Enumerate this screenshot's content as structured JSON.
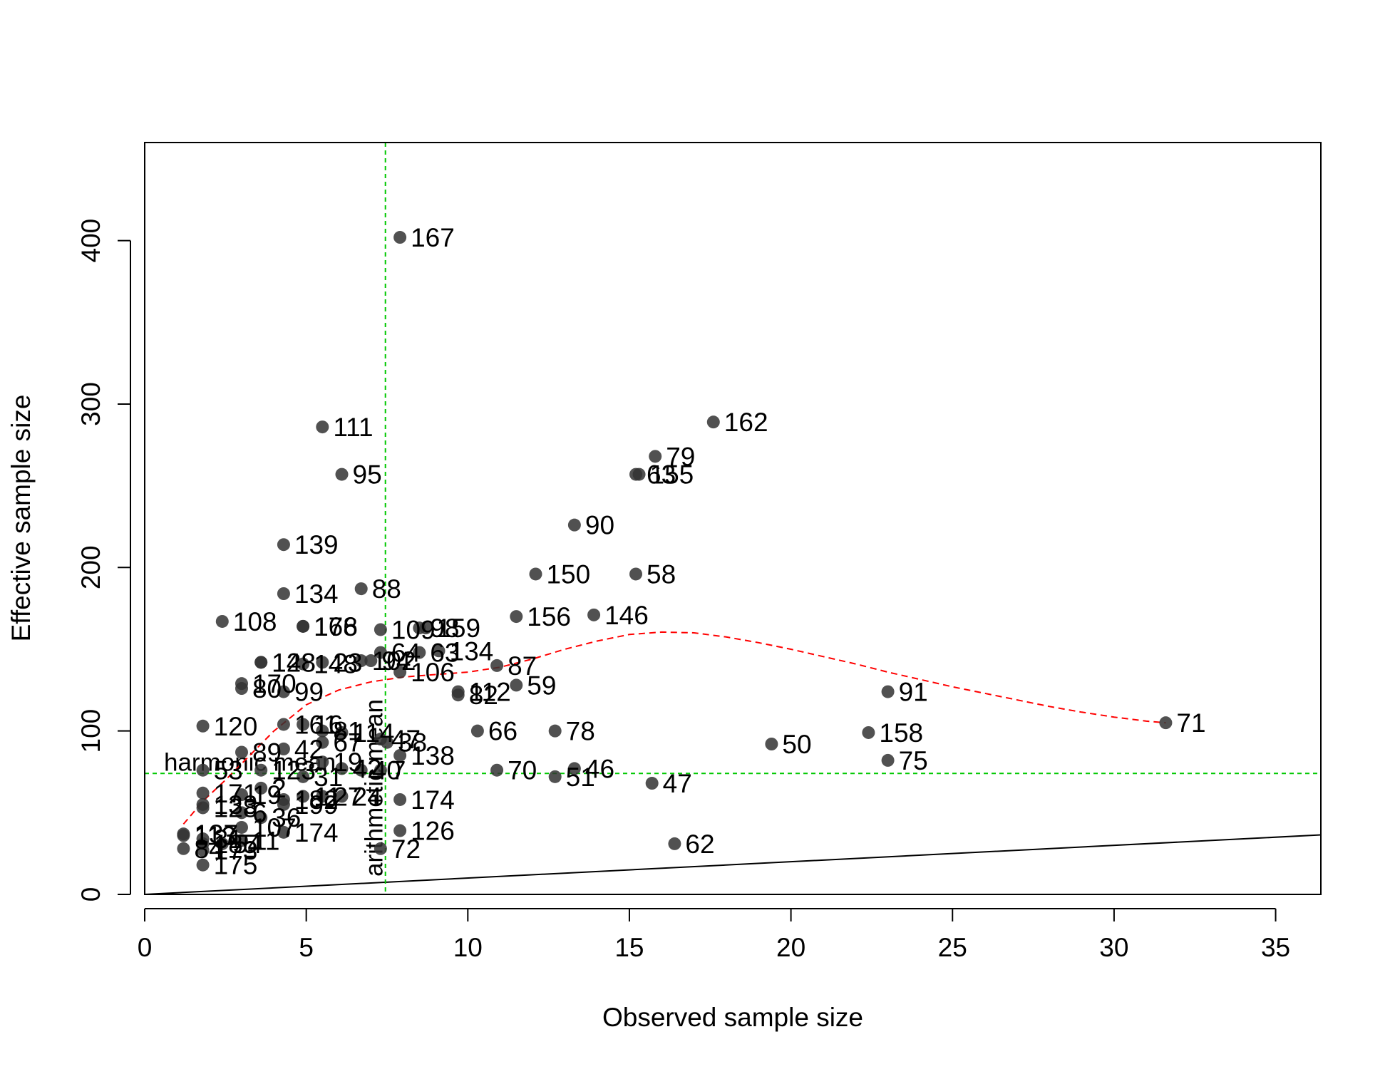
{
  "chart_data": {
    "type": "scatter",
    "title": "",
    "xlabel": "Observed sample size",
    "ylabel": "Effective sample size",
    "xlim": [
      0,
      36.4
    ],
    "ylim": [
      0,
      460
    ],
    "xticks": [
      0,
      5,
      10,
      15,
      20,
      25,
      30,
      35
    ],
    "yticks": [
      0,
      100,
      200,
      300,
      400
    ],
    "grid": false,
    "legend": "none",
    "colors": {
      "points": "#333333",
      "smoother": "#ff0000",
      "reference": "#00c800",
      "identity": "#000000"
    },
    "reference_lines": {
      "harmonic_mean": {
        "label": "harmonic mean",
        "y": 74
      },
      "arithmetic_mean": {
        "label": "arithmetic mean",
        "x": 7.45
      }
    },
    "identity_line": {
      "x": [
        0,
        36.4
      ],
      "y": [
        0,
        36.4
      ]
    },
    "smoother": {
      "x": [
        1.2,
        1.8,
        2.5,
        3.2,
        4,
        5,
        6,
        7,
        8,
        9,
        10,
        11,
        12,
        13,
        14,
        15,
        16,
        17,
        18,
        19,
        20,
        21,
        22,
        23,
        24,
        25,
        26,
        27,
        28,
        29,
        30,
        31,
        31.6
      ],
      "y": [
        43,
        57,
        70,
        84,
        100,
        116,
        125,
        130,
        133,
        134.5,
        136,
        139,
        144,
        150,
        155,
        159,
        160.5,
        160,
        157.5,
        154,
        150,
        145.5,
        141,
        136,
        131.5,
        127,
        123,
        119,
        115,
        111.5,
        108.5,
        106,
        105
      ]
    },
    "points": [
      {
        "x": 7.9,
        "y": 402,
        "label": "167"
      },
      {
        "x": 5.5,
        "y": 286,
        "label": "111"
      },
      {
        "x": 6.1,
        "y": 257,
        "label": "95"
      },
      {
        "x": 4.3,
        "y": 214,
        "label": "139"
      },
      {
        "x": 4.3,
        "y": 184,
        "label": "134"
      },
      {
        "x": 6.7,
        "y": 187,
        "label": "88"
      },
      {
        "x": 2.4,
        "y": 167,
        "label": "108"
      },
      {
        "x": 4.9,
        "y": 164,
        "label": "178"
      },
      {
        "x": 4.9,
        "y": 164,
        "label": "166"
      },
      {
        "x": 7.3,
        "y": 162,
        "label": "109"
      },
      {
        "x": 8.5,
        "y": 163,
        "label": "98"
      },
      {
        "x": 8.7,
        "y": 163,
        "label": "159"
      },
      {
        "x": 9.1,
        "y": 149,
        "label": "134"
      },
      {
        "x": 8.5,
        "y": 148,
        "label": "63"
      },
      {
        "x": 7.3,
        "y": 148,
        "label": "64"
      },
      {
        "x": 6.7,
        "y": 143,
        "label": "102"
      },
      {
        "x": 7.0,
        "y": 143,
        "label": "94"
      },
      {
        "x": 5.5,
        "y": 142,
        "label": "23"
      },
      {
        "x": 3.6,
        "y": 142,
        "label": "148"
      },
      {
        "x": 3.6,
        "y": 142,
        "label": "128"
      },
      {
        "x": 4.9,
        "y": 141,
        "label": "148"
      },
      {
        "x": 7.9,
        "y": 136,
        "label": "106"
      },
      {
        "x": 10.9,
        "y": 140,
        "label": "87"
      },
      {
        "x": 3.0,
        "y": 129,
        "label": "170"
      },
      {
        "x": 3.0,
        "y": 126,
        "label": "80"
      },
      {
        "x": 4.3,
        "y": 124,
        "label": "99"
      },
      {
        "x": 9.7,
        "y": 124,
        "label": "112"
      },
      {
        "x": 9.7,
        "y": 122,
        "label": "82"
      },
      {
        "x": 11.5,
        "y": 128,
        "label": "59"
      },
      {
        "x": 1.8,
        "y": 103,
        "label": "120"
      },
      {
        "x": 4.3,
        "y": 104,
        "label": "161"
      },
      {
        "x": 4.9,
        "y": 104,
        "label": "16"
      },
      {
        "x": 5.5,
        "y": 100,
        "label": "81"
      },
      {
        "x": 6.1,
        "y": 99,
        "label": "114"
      },
      {
        "x": 7.3,
        "y": 95,
        "label": "47"
      },
      {
        "x": 7.9,
        "y": 85,
        "label": "138"
      },
      {
        "x": 7.5,
        "y": 93,
        "label": "38"
      },
      {
        "x": 10.3,
        "y": 100,
        "label": "66"
      },
      {
        "x": 12.7,
        "y": 100,
        "label": "78"
      },
      {
        "x": 5.5,
        "y": 93,
        "label": "67"
      },
      {
        "x": 3.0,
        "y": 87,
        "label": "89"
      },
      {
        "x": 4.3,
        "y": 89,
        "label": "42"
      },
      {
        "x": 1.8,
        "y": 76,
        "label": "53"
      },
      {
        "x": 3.6,
        "y": 76,
        "label": "123"
      },
      {
        "x": 4.9,
        "y": 72,
        "label": "31"
      },
      {
        "x": 5.5,
        "y": 81,
        "label": "19"
      },
      {
        "x": 6.1,
        "y": 77,
        "label": "42"
      },
      {
        "x": 6.7,
        "y": 76,
        "label": "40"
      },
      {
        "x": 7.3,
        "y": 76,
        "label": "7"
      },
      {
        "x": 10.9,
        "y": 76,
        "label": "70"
      },
      {
        "x": 13.3,
        "y": 77,
        "label": "46"
      },
      {
        "x": 12.7,
        "y": 72,
        "label": "51"
      },
      {
        "x": 15.7,
        "y": 68,
        "label": "47"
      },
      {
        "x": 19.4,
        "y": 92,
        "label": "50"
      },
      {
        "x": 22.4,
        "y": 99,
        "label": "158"
      },
      {
        "x": 23.0,
        "y": 82,
        "label": "75"
      },
      {
        "x": 23.0,
        "y": 124,
        "label": "91"
      },
      {
        "x": 31.6,
        "y": 105,
        "label": "71"
      },
      {
        "x": 1.8,
        "y": 62,
        "label": "171"
      },
      {
        "x": 3.0,
        "y": 61,
        "label": "19"
      },
      {
        "x": 3.6,
        "y": 65,
        "label": "2"
      },
      {
        "x": 4.3,
        "y": 58,
        "label": "182"
      },
      {
        "x": 4.9,
        "y": 60,
        "label": "11"
      },
      {
        "x": 5.5,
        "y": 60,
        "label": "27"
      },
      {
        "x": 6.1,
        "y": 60,
        "label": "24"
      },
      {
        "x": 4.3,
        "y": 55,
        "label": "199"
      },
      {
        "x": 1.8,
        "y": 55,
        "label": "133"
      },
      {
        "x": 1.8,
        "y": 53,
        "label": "128"
      },
      {
        "x": 3.0,
        "y": 50,
        "label": "6"
      },
      {
        "x": 3.6,
        "y": 47,
        "label": "36"
      },
      {
        "x": 7.9,
        "y": 58,
        "label": "174"
      },
      {
        "x": 3.0,
        "y": 41,
        "label": "107"
      },
      {
        "x": 4.3,
        "y": 38,
        "label": "174"
      },
      {
        "x": 1.2,
        "y": 37,
        "label": "137"
      },
      {
        "x": 1.2,
        "y": 36,
        "label": "113"
      },
      {
        "x": 1.8,
        "y": 34,
        "label": "31"
      },
      {
        "x": 1.8,
        "y": 31,
        "label": "185"
      },
      {
        "x": 2.4,
        "y": 31,
        "label": "54"
      },
      {
        "x": 3.0,
        "y": 33,
        "label": "11"
      },
      {
        "x": 1.2,
        "y": 28,
        "label": "84"
      },
      {
        "x": 1.8,
        "y": 27,
        "label": "173"
      },
      {
        "x": 1.8,
        "y": 18,
        "label": "175"
      },
      {
        "x": 7.9,
        "y": 39,
        "label": "126"
      },
      {
        "x": 7.3,
        "y": 28,
        "label": "72"
      },
      {
        "x": 16.4,
        "y": 31,
        "label": "62"
      },
      {
        "x": 13.9,
        "y": 171,
        "label": "146"
      },
      {
        "x": 11.5,
        "y": 170,
        "label": "156"
      },
      {
        "x": 12.1,
        "y": 196,
        "label": "150"
      },
      {
        "x": 15.2,
        "y": 196,
        "label": "58"
      },
      {
        "x": 13.3,
        "y": 226,
        "label": "90"
      },
      {
        "x": 15.8,
        "y": 268,
        "label": "79"
      },
      {
        "x": 15.2,
        "y": 257,
        "label": "63"
      },
      {
        "x": 15.3,
        "y": 257,
        "label": "155"
      },
      {
        "x": 17.6,
        "y": 289,
        "label": "162"
      }
    ]
  }
}
